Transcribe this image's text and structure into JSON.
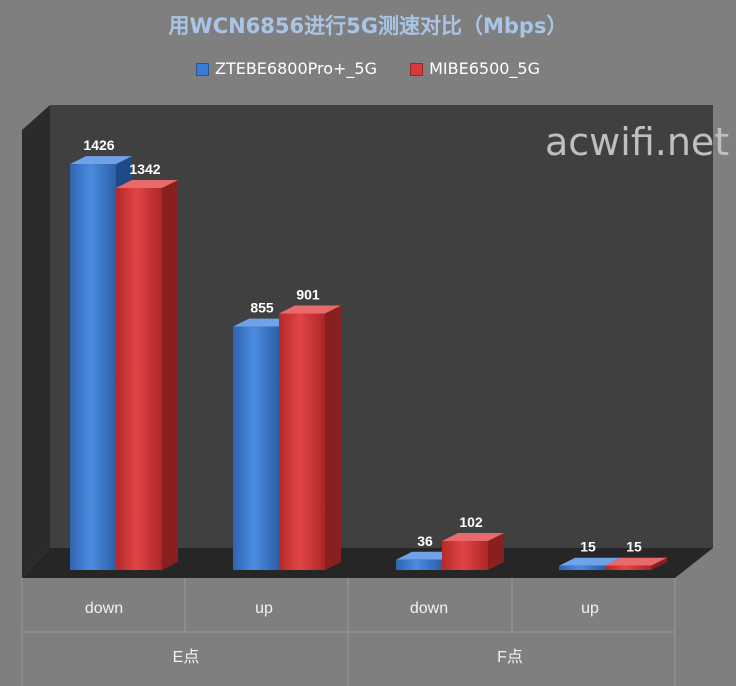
{
  "chart_data": {
    "type": "bar",
    "title": "用WCN6856进行5G测速对比（Mbps）",
    "categories": [
      "down",
      "up",
      "down",
      "up"
    ],
    "groups": [
      {
        "label": "E点",
        "categories": [
          "down",
          "up"
        ]
      },
      {
        "label": "F点",
        "categories": [
          "down",
          "up"
        ]
      }
    ],
    "series": [
      {
        "name": "ZTEBE6800Pro+_5G",
        "values": [
          1426,
          855,
          36,
          15
        ],
        "color": "#3a7bd5"
      },
      {
        "name": "MIBE6500_5G",
        "values": [
          1342,
          901,
          102,
          15
        ],
        "color": "#d63a3a"
      }
    ],
    "ylim": [
      0,
      1500
    ],
    "grid": false,
    "legend": "top",
    "style": "3d-column"
  },
  "watermark": "acwifi.net"
}
